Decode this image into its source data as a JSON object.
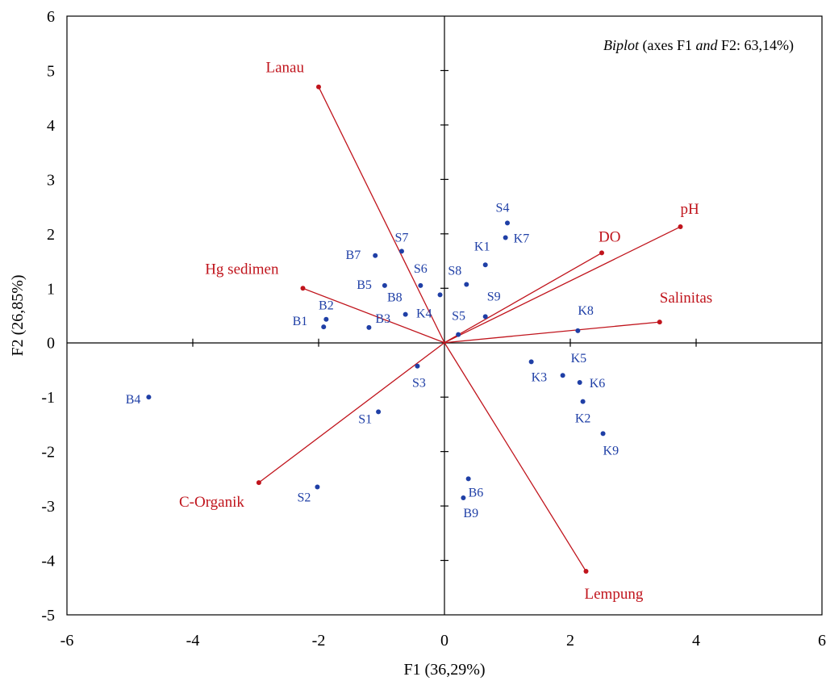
{
  "chart_data": {
    "type": "scatter",
    "title_parts": {
      "prefix": "Biplot",
      "mid1": " (axes F1 ",
      "mid_italic": "and",
      "suffix": " F2: 63,14%)"
    },
    "xlabel": "F1 (36,29%)",
    "ylabel": "F2 (26,85%)",
    "xlim": [
      -6,
      6
    ],
    "ylim": [
      -5,
      6
    ],
    "xticks": [
      -6,
      -4,
      -2,
      0,
      2,
      4,
      6
    ],
    "yticks": [
      -5,
      -4,
      -3,
      -2,
      -1,
      0,
      1,
      2,
      3,
      4,
      5,
      6
    ],
    "grid": false,
    "colors": {
      "observations": "#1f3fa6",
      "variables": "#c0141c"
    },
    "observations": [
      {
        "label": "B1",
        "x": -1.92,
        "y": 0.29
      },
      {
        "label": "B2",
        "x": -1.88,
        "y": 0.43
      },
      {
        "label": "B3",
        "x": -1.2,
        "y": 0.28
      },
      {
        "label": "B4",
        "x": -4.7,
        "y": -1.0
      },
      {
        "label": "B5",
        "x": -0.95,
        "y": 1.05
      },
      {
        "label": "B6",
        "x": 0.38,
        "y": -2.5
      },
      {
        "label": "B7",
        "x": -1.1,
        "y": 1.6
      },
      {
        "label": "B8",
        "x": -0.62,
        "y": 0.52
      },
      {
        "label": "B9",
        "x": 0.3,
        "y": -2.85
      },
      {
        "label": "S1",
        "x": -1.05,
        "y": -1.27
      },
      {
        "label": "S2",
        "x": -2.02,
        "y": -2.65
      },
      {
        "label": "S3",
        "x": -0.43,
        "y": -0.43
      },
      {
        "label": "S4",
        "x": 1.0,
        "y": 2.2
      },
      {
        "label": "S5",
        "x": 0.22,
        "y": 0.15
      },
      {
        "label": "S6",
        "x": -0.38,
        "y": 1.05
      },
      {
        "label": "S7",
        "x": -0.68,
        "y": 1.68
      },
      {
        "label": "S8",
        "x": 0.35,
        "y": 1.07
      },
      {
        "label": "S9",
        "x": 0.65,
        "y": 0.48
      },
      {
        "label": "K1",
        "x": 0.65,
        "y": 1.43
      },
      {
        "label": "K2",
        "x": 2.2,
        "y": -1.08
      },
      {
        "label": "K3",
        "x": 1.38,
        "y": -0.35
      },
      {
        "label": "K4",
        "x": -0.07,
        "y": 0.88
      },
      {
        "label": "K5",
        "x": 1.88,
        "y": -0.6
      },
      {
        "label": "K6",
        "x": 2.15,
        "y": -0.73
      },
      {
        "label": "K7",
        "x": 0.97,
        "y": 1.93
      },
      {
        "label": "K8",
        "x": 2.12,
        "y": 0.22
      },
      {
        "label": "K9",
        "x": 2.52,
        "y": -1.67
      }
    ],
    "variables": [
      {
        "label": "Lanau",
        "x": -2.0,
        "y": 4.7
      },
      {
        "label": "Hg sedimen",
        "x": -2.25,
        "y": 1.0
      },
      {
        "label": "C-Organik",
        "x": -2.95,
        "y": -2.57
      },
      {
        "label": "pH",
        "x": 3.75,
        "y": 2.13
      },
      {
        "label": "DO",
        "x": 2.5,
        "y": 1.65
      },
      {
        "label": "Salinitas",
        "x": 3.42,
        "y": 0.38
      },
      {
        "label": "Lempung",
        "x": 2.25,
        "y": -4.2
      }
    ]
  }
}
